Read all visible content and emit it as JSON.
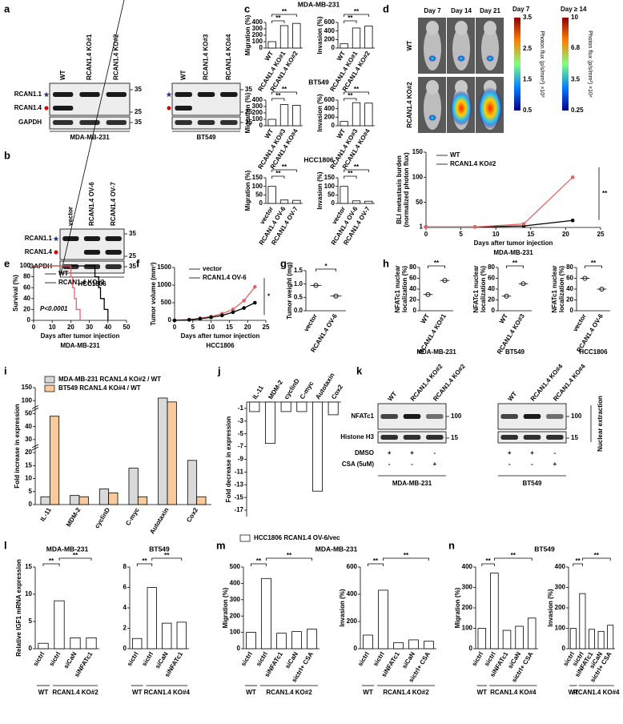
{
  "panels": [
    "a",
    "b",
    "c",
    "d",
    "e",
    "f",
    "g",
    "h",
    "i",
    "j",
    "k",
    "l",
    "m",
    "n"
  ],
  "blot_a": {
    "blots": [
      {
        "lanes": [
          "WT",
          "RCAN1.4 KO#1",
          "RCAN1.4 KO#2"
        ],
        "caption": "MDA-MB-231"
      },
      {
        "lanes": [
          "WT",
          "RCAN1.4 KO#3",
          "RCAN1.4 KO#4"
        ],
        "caption": "BT549"
      }
    ],
    "rows": [
      "RCAN1.1",
      "RCAN1.4",
      "GAPDH"
    ],
    "mw": [
      35,
      25,
      35
    ]
  },
  "blot_b": {
    "lanes": [
      "vector",
      "RCAN1.4 OV-6",
      "RCAN1.4 OV-7"
    ],
    "rows": [
      "RCAN1.1",
      "RCAN1.4",
      "GAPDH"
    ],
    "mw": [
      35,
      25,
      35
    ],
    "caption": "HCC1806"
  },
  "imaging": {
    "days": [
      "Day 7",
      "Day 14",
      "Day 21"
    ],
    "rows": [
      "WT",
      "RCAN1.4 KO#2"
    ],
    "colorbars": [
      {
        "title": "Day  7",
        "ticks": [
          3.5,
          2.5,
          1.5,
          0.5
        ],
        "label": "Photon flux (p/s/mm²) ×10³"
      },
      {
        "title": "Day ≥ 14",
        "ticks": [
          10,
          6.8,
          3.5,
          0.25
        ],
        "label": "Photon flux (p/s/mm²) ×10⁴"
      }
    ]
  },
  "blot_k": {
    "blots": [
      {
        "lanes": [
          "WT",
          "RCAN1.4 KO#2",
          "RCAN1.4 KO#2"
        ],
        "caption": "MDA-MB-231"
      },
      {
        "lanes": [
          "WT",
          "RCAN1.4 KO#4",
          "RCAN1.4 KO#4"
        ],
        "caption": "BT549"
      }
    ],
    "rows": [
      "NFATc1",
      "Histone H3"
    ],
    "mw": [
      100,
      15
    ],
    "side": "Nuclear extraction",
    "treatments": [
      {
        "name": "DMSO",
        "marks": [
          "+",
          "+",
          "-",
          "+",
          "+",
          "-"
        ]
      },
      {
        "name": "CSA (5uM)",
        "marks": [
          "-",
          "-",
          "+",
          "-",
          "-",
          "+"
        ]
      }
    ]
  },
  "chart_data": [
    {
      "type": "bar",
      "title": "MDA-MB-231",
      "ylabel": "Migration (%)",
      "categories": [
        "WT",
        "RCAN1.4 KO#1",
        "RCAN1.4 KO#2"
      ],
      "values": [
        100,
        350,
        385
      ],
      "color": "#ffffff",
      "ylim": [
        0,
        400
      ],
      "yticks": [
        0,
        100,
        200,
        300,
        400
      ],
      "annotations": [
        "**",
        "**"
      ]
    },
    {
      "type": "bar",
      "ylabel": "Invasion (%)",
      "categories": [
        "WT",
        "RCAN1.4 KO#1",
        "RCAN1.4 KO#2"
      ],
      "values": [
        100,
        470,
        515
      ],
      "color": "#ffffff",
      "ylim": [
        0,
        600
      ],
      "yticks": [
        0,
        200,
        400,
        600
      ],
      "annotations": [
        "**",
        "**"
      ]
    },
    {
      "type": "bar",
      "title": "BT549",
      "ylabel": "Migration (%)",
      "categories": [
        "WT",
        "RCAN1.4 KO#3",
        "RCAN1.4 KO#4"
      ],
      "values": [
        100,
        330,
        320
      ],
      "color": "#ffffff",
      "ylim": [
        0,
        400
      ],
      "yticks": [
        0,
        100,
        200,
        300,
        400
      ],
      "annotations": [
        "**",
        "**"
      ]
    },
    {
      "type": "bar",
      "ylabel": "Invasion (%)",
      "categories": [
        "WT",
        "RCAN1.4 KO#3",
        "RCAN1.4 KO#4"
      ],
      "values": [
        100,
        540,
        530
      ],
      "color": "#ffffff",
      "ylim": [
        0,
        600
      ],
      "yticks": [
        0,
        200,
        400,
        600
      ],
      "annotations": [
        "**",
        "**"
      ]
    },
    {
      "type": "bar",
      "title": "HCC1806",
      "ylabel": "Migration (%)",
      "categories": [
        "vector",
        "RCAN1.4 OV-6",
        "RCAN1.4 OV-7"
      ],
      "values": [
        100,
        20,
        18
      ],
      "color": "#ffffff",
      "ylim": [
        0,
        150
      ],
      "yticks": [
        0,
        50,
        100,
        150
      ],
      "annotations": [
        "**",
        "**"
      ]
    },
    {
      "type": "bar",
      "ylabel": "Invasion (%)",
      "categories": [
        "vector",
        "RCAN1.4 OV-6",
        "RCAN1.4 OV-7"
      ],
      "values": [
        100,
        15,
        13
      ],
      "color": "#ffffff",
      "ylim": [
        0,
        150
      ],
      "yticks": [
        0,
        50,
        100,
        150
      ],
      "annotations": [
        "**",
        "**"
      ]
    },
    {
      "type": "line",
      "ylabel": [
        "BLI metastasis burden",
        "(normalized photon flux)"
      ],
      "xlabel": "Days after tumor injection",
      "subtitle": "MDA-MB-231",
      "xlim": [
        0,
        25
      ],
      "xticks": [
        0,
        5,
        10,
        15,
        20,
        25
      ],
      "ylim": [
        0,
        150
      ],
      "yticks": [
        1,
        50,
        100,
        150
      ],
      "series": [
        {
          "name": "WT",
          "color": "#000000",
          "x": [
            0,
            7,
            14,
            21
          ],
          "values": [
            1,
            1,
            3,
            14
          ]
        },
        {
          "name": "RCAN1.4 KO#2",
          "color": "#e06666",
          "x": [
            0,
            7,
            14,
            21
          ],
          "values": [
            1,
            1,
            7,
            100
          ]
        }
      ],
      "annotations": [
        "**"
      ]
    },
    {
      "type": "step",
      "ylabel": "Survival (%)",
      "xlabel": "Days after tumor injection",
      "subtitle": "MDA-MB-231",
      "xlim": [
        0,
        50
      ],
      "xticks": [
        0,
        10,
        20,
        30,
        40,
        50
      ],
      "ylim": [
        0,
        100
      ],
      "yticks": [
        0,
        20,
        40,
        60,
        80,
        100
      ],
      "series": [
        {
          "name": "WT",
          "color": "#000000",
          "x": [
            0,
            33,
            35,
            36,
            38,
            40
          ],
          "values": [
            100,
            80,
            60,
            40,
            20,
            0
          ]
        },
        {
          "name": "RCAN1.4 KO#2",
          "color": "#e06666",
          "x": [
            0,
            20,
            21,
            22,
            23,
            25
          ],
          "values": [
            100,
            80,
            60,
            40,
            20,
            0
          ]
        }
      ],
      "annotations": [
        "P<0.0001"
      ]
    },
    {
      "type": "line",
      "ylabel": "Tumor volume (mm³)",
      "xlabel": "Days after tumor injection",
      "subtitle": "HCC1806",
      "xlim": [
        0,
        25
      ],
      "xticks": [
        0,
        5,
        10,
        15,
        20,
        25
      ],
      "ylim": [
        0,
        1500
      ],
      "yticks": [
        0,
        500,
        1000,
        1500
      ],
      "series": [
        {
          "name": "vector",
          "color": "#e06666",
          "x": [
            0,
            4,
            7,
            10,
            13,
            16,
            19,
            22
          ],
          "values": [
            0,
            20,
            60,
            110,
            190,
            310,
            560,
            950
          ]
        },
        {
          "name": "RCAN1.4 OV-6",
          "color": "#000000",
          "x": [
            0,
            4,
            7,
            10,
            13,
            16,
            19,
            22
          ],
          "values": [
            0,
            15,
            45,
            85,
            140,
            230,
            350,
            500
          ]
        }
      ],
      "annotations": [
        "*"
      ]
    },
    {
      "type": "dot",
      "ylabel": "Tumor weight (mg)",
      "categories": [
        "vector",
        "RCAN1.4 OV-6"
      ],
      "values": [
        0.95,
        0.55
      ],
      "color": "#000000",
      "ylim": [
        0,
        1.5
      ],
      "yticks": [
        {
          "value": 0,
          "label": "0.0"
        },
        {
          "value": 0.5,
          "label": "0.5"
        },
        {
          "value": 1,
          "label": "1.0"
        },
        {
          "value": 1.5,
          "label": "1.5"
        }
      ],
      "annotations": [
        "*"
      ]
    },
    {
      "type": "dot",
      "ylabel": [
        "NFATc1 nuclear",
        "localization (%)"
      ],
      "categories": [
        "WT",
        "RCAN1.4 KO#1"
      ],
      "values": [
        30,
        56
      ],
      "color": "#000000",
      "subtitle": "MDA-MB-231",
      "ylim": [
        0,
        80
      ],
      "yticks": [
        0,
        20,
        40,
        60,
        80
      ],
      "annotations": [
        "**"
      ]
    },
    {
      "type": "dot",
      "ylabel": [
        "NFATc1 nuclear",
        "localization (%)"
      ],
      "categories": [
        "WT",
        "RCAN1.4 KO#3"
      ],
      "values": [
        27,
        50
      ],
      "color": "#000000",
      "subtitle": "BT549",
      "ylim": [
        0,
        80
      ],
      "yticks": [
        0,
        20,
        40,
        60,
        80
      ],
      "annotations": [
        "**"
      ]
    },
    {
      "type": "dot",
      "ylabel": [
        "NFATc1 nuclear",
        "localization (%)"
      ],
      "categories": [
        "vector",
        "RCAN1.4 OV-6"
      ],
      "values": [
        60,
        40
      ],
      "color": "#000000",
      "subtitle": "HCC1806",
      "ylim": [
        0,
        80
      ],
      "yticks": [
        0,
        20,
        40,
        60,
        80
      ],
      "annotations": [
        "**"
      ]
    },
    {
      "type": "bar",
      "ylabel": "Fold increase in expression",
      "categories": [
        "IL-11",
        "MDM-2",
        "cyclinD",
        "C-myc",
        "Autotaxin",
        "Cox2"
      ],
      "series": [
        {
          "name": "MDA-MB-231 RCAN1.4 KO#2 / WT",
          "color": "#d9d9d9",
          "values": [
            3,
            3.5,
            6,
            14,
            110,
            17
          ]
        },
        {
          "name": "BT549 RCAN1.4 KO#4 / WT",
          "color": "#f9cb9c",
          "values": [
            48,
            3,
            4.5,
            3,
            95,
            3
          ]
        }
      ],
      "ylim": [
        0,
        150
      ],
      "yticks": [
        0,
        5,
        10,
        15,
        20,
        30,
        40,
        50,
        100,
        150
      ],
      "axis_break": true
    },
    {
      "type": "bar",
      "ylabel": "Fold decrease in expression",
      "categories": [
        "IL-11",
        "MDM-2",
        "cyclinD",
        "C-myc",
        "Autotaxin",
        "Cox2"
      ],
      "series": [
        {
          "name": "HCC1806 RCAN1.4 OV-6/vec",
          "color": "#ffffff",
          "values": [
            -1.5,
            -6.5,
            -1.5,
            -1.5,
            -14,
            -2
          ]
        }
      ],
      "ylim": [
        -18,
        0
      ],
      "yticks": [
        -1,
        -3,
        -5,
        -7,
        -9,
        -11,
        -13,
        -15,
        -17
      ]
    },
    {
      "type": "bar",
      "title": "MDA-MB-231",
      "ylabel": "Relative IGF1 mRNA expression",
      "categories": [
        "sictrl",
        "sictrl",
        "siCaN",
        "siNFATc1"
      ],
      "values": [
        1,
        8.8,
        2,
        2
      ],
      "color": "#ffffff",
      "ylim": [
        0,
        15
      ],
      "yticks": [
        0,
        5,
        10,
        15
      ],
      "groups": [
        "WT",
        "RCAN1.4 KO#2"
      ],
      "annotations": [
        "**",
        "**"
      ]
    },
    {
      "type": "bar",
      "title": "BT549",
      "categories": [
        "sictrl",
        "sictrl",
        "siCaN",
        "siNFATc1"
      ],
      "values": [
        1,
        6,
        2.5,
        2.6
      ],
      "color": "#ffffff",
      "ylim": [
        0,
        8
      ],
      "yticks": [
        0,
        2,
        4,
        6,
        8
      ],
      "groups": [
        "WT",
        "RCAN1.4 KO#4"
      ],
      "annotations": [
        "**",
        "**"
      ]
    },
    {
      "type": "bar",
      "title": "MDA-MB-231",
      "ylabel": "Migration (%)",
      "categories": [
        "sictrl",
        "sictrl",
        "siNFATc1",
        "siCaN",
        "sictrl+ CSA"
      ],
      "values": [
        100,
        430,
        95,
        105,
        120
      ],
      "color": "#ffffff",
      "ylim": [
        0,
        500
      ],
      "yticks": [
        0,
        100,
        200,
        300,
        400,
        500
      ],
      "groups": [
        "WT",
        "RCAN1.4 KO#2"
      ],
      "annotations": [
        "**",
        "**"
      ]
    },
    {
      "type": "bar",
      "ylabel": "Invasion (%)",
      "categories": [
        "sictrl",
        "sictrl",
        "siNFATc1",
        "siCaN",
        "sictrl+ CSA"
      ],
      "values": [
        100,
        430,
        45,
        65,
        55
      ],
      "color": "#ffffff",
      "ylim": [
        0,
        600
      ],
      "yticks": [
        0,
        200,
        400,
        600
      ],
      "groups": [
        "WT",
        "RCAN1.4 KO#2"
      ],
      "annotations": [
        "**",
        "**"
      ]
    },
    {
      "type": "bar",
      "title": "BT549",
      "ylabel": "Migration (%)",
      "categories": [
        "sictrl",
        "sictrl",
        "siNFATc1",
        "siCaN",
        "sictrl+ CSA"
      ],
      "values": [
        100,
        370,
        90,
        110,
        150
      ],
      "color": "#ffffff",
      "ylim": [
        0,
        400
      ],
      "yticks": [
        0,
        100,
        200,
        300,
        400
      ],
      "groups": [
        "WT",
        "RCAN1.4 KO#4"
      ],
      "annotations": [
        "**",
        "**"
      ]
    },
    {
      "type": "bar",
      "ylabel": "Invasion (%)",
      "categories": [
        "sictrl",
        "sictrl",
        "siNFATc1",
        "siCaN",
        "sictrl+ CSA"
      ],
      "values": [
        100,
        270,
        95,
        85,
        115
      ],
      "color": "#ffffff",
      "ylim": [
        0,
        400
      ],
      "yticks": [
        0,
        100,
        200,
        300,
        400
      ],
      "groups": [
        "WT",
        "RCAN1.4 KO#4"
      ],
      "annotations": [
        "**",
        "**"
      ]
    }
  ]
}
